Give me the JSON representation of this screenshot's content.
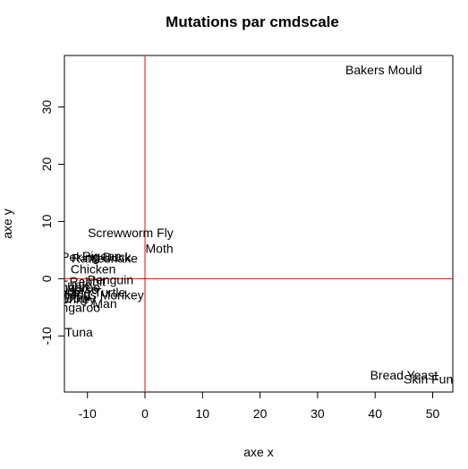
{
  "chart_data": {
    "type": "scatter",
    "title": "Mutations par cmdscale",
    "xlabel": "axe x",
    "ylabel": "axe y",
    "xlim": [
      -14,
      53.5
    ],
    "ylim": [
      -19.8,
      39
    ],
    "xticks": [
      -10,
      0,
      10,
      20,
      30,
      40,
      50
    ],
    "yticks": [
      -10,
      0,
      10,
      20,
      30
    ],
    "reference_lines": {
      "x": 0,
      "y": 0,
      "color": "#ff0000"
    },
    "points": [
      {
        "label": "Bakers Mould",
        "x": 41.5,
        "y": 36.5
      },
      {
        "label": "Screwworm Fly",
        "x": -2.5,
        "y": 8
      },
      {
        "label": "Moth",
        "x": 2.5,
        "y": 5.3
      },
      {
        "label": "Pigeon",
        "x": -7.5,
        "y": 4
      },
      {
        "label": "Peking Duck",
        "x": -8.5,
        "y": 3.8
      },
      {
        "label": "Rattlesnake",
        "x": -7,
        "y": 3.6
      },
      {
        "label": "Chicken",
        "x": -9,
        "y": 1.7
      },
      {
        "label": "Rabbit",
        "x": -10,
        "y": -0.5
      },
      {
        "label": "Penguin",
        "x": -6,
        "y": -0.2
      },
      {
        "label": "Turtle",
        "x": -12,
        "y": -1
      },
      {
        "label": "Kangaroo",
        "x": -12.5,
        "y": -1.5
      },
      {
        "label": "Horse",
        "x": -11,
        "y": -1.8
      },
      {
        "label": "Snapping Turtle",
        "x": -11,
        "y": -2.4
      },
      {
        "label": "Pig",
        "x": -11,
        "y": -2.7
      },
      {
        "label": "Rhesus Monkey",
        "x": -8,
        "y": -2.8
      },
      {
        "label": "Dog",
        "x": -12,
        "y": -3.4
      },
      {
        "label": "Donkey",
        "x": -12.3,
        "y": -3.5
      },
      {
        "label": "Man",
        "x": -7,
        "y": -4.3
      },
      {
        "label": "Kangaroo",
        "x": -12.5,
        "y": -5
      },
      {
        "label": "Tuna",
        "x": -11.5,
        "y": -9.3
      },
      {
        "label": "Bread Yeast",
        "x": 45,
        "y": -16.8
      },
      {
        "label": "Skin Fungus",
        "x": 51,
        "y": -17.5
      }
    ]
  }
}
